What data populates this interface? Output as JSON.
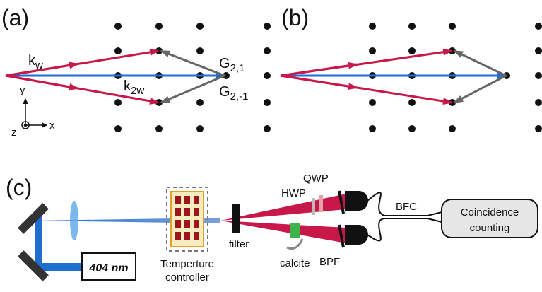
{
  "panel_a": {
    "label": "(a)",
    "k_w": {
      "base": "k",
      "sub": "w"
    },
    "k_2w": {
      "base": "k",
      "sub": "2w"
    },
    "g_21": {
      "base": "G",
      "sub": "2,1"
    },
    "g_2m1": {
      "base": "G",
      "sub": "2,-1"
    },
    "axes": {
      "y": "y",
      "z": "z",
      "x": "x"
    }
  },
  "panel_b": {
    "label": "(b)"
  },
  "panel_c": {
    "label": "(c)",
    "laser": "404 nm",
    "temperature_controller": [
      "Temperture",
      "controller"
    ],
    "filter": "filter",
    "hwp": "HWP",
    "qwp": "QWP",
    "calcite": "calcite",
    "bpf": "BPF",
    "bfc": "BFC",
    "coincidence": [
      "Coincidence",
      "counting"
    ]
  }
}
